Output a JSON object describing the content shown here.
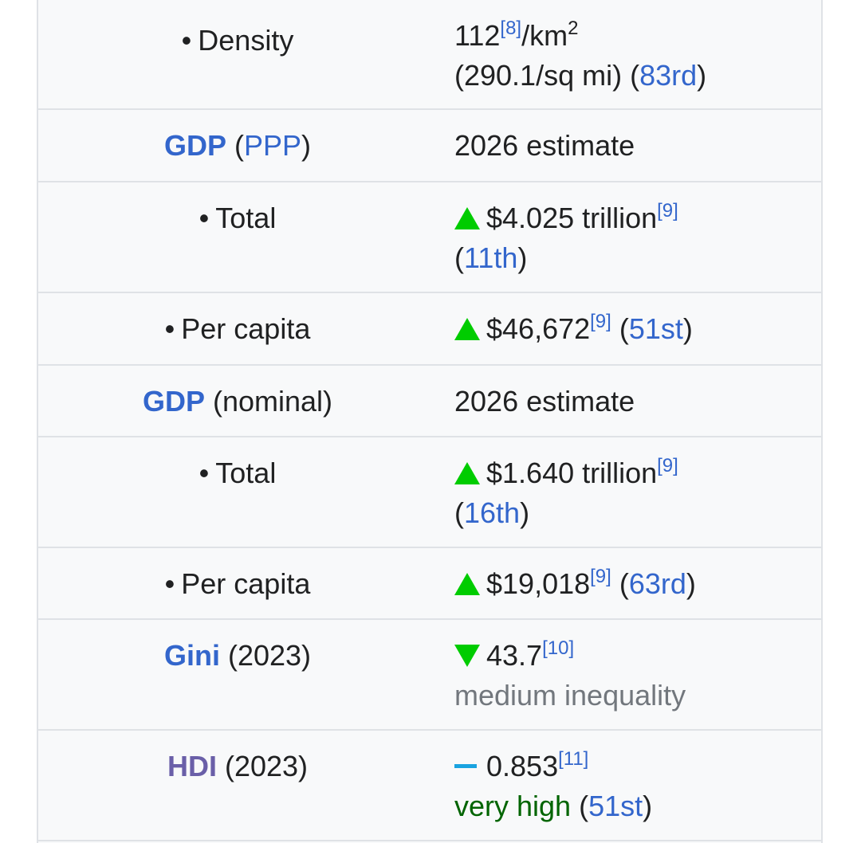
{
  "rows": {
    "density": {
      "label": "Density",
      "value": "112",
      "ref": "[8]",
      "unit": "/km",
      "unit_sup": "2",
      "imperial": "(290.1/sq mi)",
      "rank": "83rd"
    },
    "gdp_ppp": {
      "label_link": "GDP",
      "label_sub": "PPP",
      "value": "2026 estimate"
    },
    "gdp_ppp_total": {
      "label": "Total",
      "trend": "up",
      "value": "$4.025 trillion",
      "ref": "[9]",
      "rank": "11th"
    },
    "gdp_ppp_per_capita": {
      "label": "Per capita",
      "trend": "up",
      "value": "$46,672",
      "ref": "[9]",
      "rank": "51st"
    },
    "gdp_nominal": {
      "label_link": "GDP",
      "label_sub": "(nominal)",
      "value": "2026 estimate"
    },
    "gdp_nominal_total": {
      "label": "Total",
      "trend": "up",
      "value": "$1.640 trillion",
      "ref": "[9]",
      "rank": "16th"
    },
    "gdp_nominal_per_capita": {
      "label": "Per capita",
      "trend": "up",
      "value": "$19,018",
      "ref": "[9]",
      "rank": "63rd"
    },
    "gini": {
      "label_link": "Gini",
      "label_sub": "(2023)",
      "trend": "down",
      "value": "43.7",
      "ref": "[10]",
      "category": "medium inequality"
    },
    "hdi": {
      "label_link": "HDI",
      "label_sub": "(2023)",
      "trend": "steady",
      "value": "0.853",
      "ref": "[11]",
      "category": "very high",
      "rank": "51st"
    }
  },
  "colors": {
    "link": "#3366cc",
    "trend_up": "#00cc00",
    "trend_steady": "#1aa3e0",
    "very_high": "#006400",
    "muted": "#72777d"
  }
}
